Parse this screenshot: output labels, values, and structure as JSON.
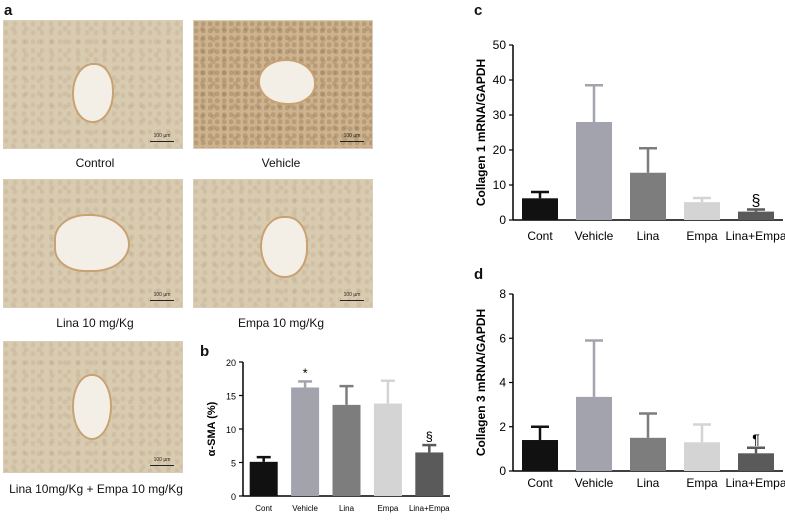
{
  "panels": {
    "a": "a",
    "b": "b",
    "c": "c",
    "d": "d"
  },
  "micrographs": [
    {
      "caption": "Control",
      "scale": "100 µm"
    },
    {
      "caption": "Vehicle",
      "scale": "100 µm"
    },
    {
      "caption": "Lina 10 mg/Kg",
      "scale": "100 µm"
    },
    {
      "caption": "Empa 10 mg/Kg",
      "scale": "100 µm"
    },
    {
      "caption": "Lina 10mg/Kg + Empa 10 mg/Kg",
      "scale": "100 µm"
    }
  ],
  "chart_data": [
    {
      "id": "b",
      "type": "bar",
      "ylabel": "α-SMA (%)",
      "categories": [
        "Cont",
        "Vehicle",
        "Lina",
        "Empa",
        "Lina+Empa"
      ],
      "values": [
        5.1,
        16.2,
        13.6,
        13.8,
        6.5
      ],
      "errors": [
        0.7,
        0.9,
        2.8,
        3.4,
        1.1
      ],
      "annotations": [
        "",
        "*",
        "",
        "",
        "§"
      ],
      "colors": [
        "#111111",
        "#a3a3ad",
        "#7d7d7d",
        "#d4d4d4",
        "#5a5a5a"
      ],
      "ylim": [
        0,
        20
      ],
      "yticks": [
        0,
        5,
        10,
        15,
        20
      ]
    },
    {
      "id": "c",
      "type": "bar",
      "ylabel": "Collagen 1 mRNA/GAPDH",
      "categories": [
        "Cont",
        "Vehicle",
        "Lina",
        "Empa",
        "Lina+Empa"
      ],
      "values": [
        6.2,
        28.0,
        13.5,
        5.1,
        2.4
      ],
      "errors": [
        1.8,
        10.5,
        7.0,
        1.2,
        0.6
      ],
      "annotations": [
        "",
        "",
        "",
        "",
        "§"
      ],
      "colors": [
        "#111111",
        "#a3a3ad",
        "#7d7d7d",
        "#d4d4d4",
        "#5a5a5a"
      ],
      "ylim": [
        0,
        50
      ],
      "yticks": [
        0,
        10,
        20,
        30,
        40,
        50
      ]
    },
    {
      "id": "d",
      "type": "bar",
      "ylabel": "Collagen 3 mRNA/GAPDH",
      "categories": [
        "Cont",
        "Vehicle",
        "Lina",
        "Empa",
        "Lina+Empa"
      ],
      "values": [
        1.4,
        3.35,
        1.5,
        1.3,
        0.8
      ],
      "errors": [
        0.6,
        2.55,
        1.1,
        0.8,
        0.25
      ],
      "annotations": [
        "",
        "",
        "",
        "",
        "¶"
      ],
      "colors": [
        "#111111",
        "#a3a3ad",
        "#7d7d7d",
        "#d4d4d4",
        "#5a5a5a"
      ],
      "ylim": [
        0,
        8
      ],
      "yticks": [
        0,
        2,
        4,
        6,
        8
      ]
    }
  ]
}
